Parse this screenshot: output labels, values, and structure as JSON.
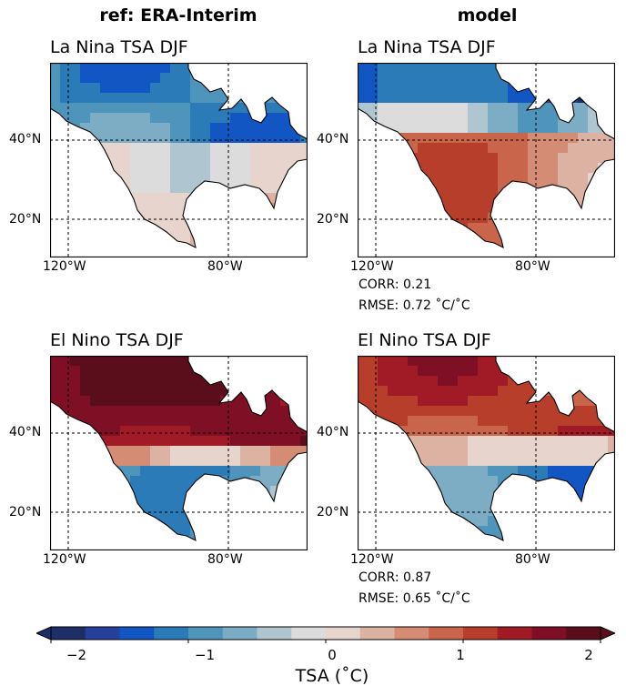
{
  "column_titles": {
    "ref": "ref: ERA-Interim",
    "model": "model"
  },
  "panels": [
    {
      "id": "ref-lanina",
      "title": "La Nina TSA DJF"
    },
    {
      "id": "model-lanina",
      "title": "La Nina TSA DJF"
    },
    {
      "id": "ref-elnino",
      "title": "El Nino TSA DJF"
    },
    {
      "id": "model-elnino",
      "title": "El Nino TSA DJF"
    }
  ],
  "stats": {
    "lanina": {
      "corr": "CORR: 0.21",
      "rmse": "RMSE: 0.72 ˚C/˚C"
    },
    "elnino": {
      "corr": "CORR: 0.87",
      "rmse": "RMSE: 0.65 ˚C/˚C"
    }
  },
  "axes": {
    "lat_labels": [
      "40°N",
      "20°N"
    ],
    "lon_labels": [
      "120°W",
      "80°W"
    ]
  },
  "colorbar": {
    "label": "TSA (˚C)",
    "ticks": [
      "−2",
      "−1",
      "0",
      "1",
      "2"
    ],
    "tick_values": [
      -2,
      -1,
      0,
      1,
      2
    ],
    "range": [
      -2,
      2
    ],
    "colors": [
      "#1d2f66",
      "#27409a",
      "#1156c2",
      "#2a7bb8",
      "#4f94bb",
      "#7dadc4",
      "#afc6d0",
      "#dcdcdc",
      "#e7d4cd",
      "#dcb2a2",
      "#d48c74",
      "#c9654b",
      "#b63e2a",
      "#a01b25",
      "#7e0f24",
      "#5a0e1c"
    ]
  },
  "chart_data": [
    {
      "type": "heatmap",
      "title": "La Nina TSA DJF",
      "source": "ref: ERA-Interim",
      "region": "North America",
      "units": "˚C/˚C",
      "clim": [
        -2,
        2
      ],
      "features": [
        {
          "area": "Canada / northern US",
          "value": -0.9
        },
        {
          "area": "central Canada",
          "value": -1.3
        },
        {
          "area": "southern US / Mexico",
          "value": 0.4
        }
      ]
    },
    {
      "type": "heatmap",
      "title": "La Nina TSA DJF",
      "source": "model",
      "region": "North America",
      "units": "˚C/˚C",
      "clim": [
        -2,
        2
      ],
      "corr": 0.21,
      "rmse": 0.72,
      "features": [
        {
          "area": "northern Canada",
          "value": -1.2
        },
        {
          "area": "central US",
          "value": 0.9
        },
        {
          "area": "southeast US",
          "value": 0.6
        }
      ]
    },
    {
      "type": "heatmap",
      "title": "El Nino TSA DJF",
      "source": "ref: ERA-Interim",
      "region": "North America",
      "units": "˚C/˚C",
      "clim": [
        -2,
        2
      ],
      "features": [
        {
          "area": "Canada",
          "value": 1.9
        },
        {
          "area": "northern US",
          "value": 0.8
        },
        {
          "area": "southern US / Mexico",
          "value": -0.9
        }
      ]
    },
    {
      "type": "heatmap",
      "title": "El Nino TSA DJF",
      "source": "model",
      "region": "North America",
      "units": "˚C/˚C",
      "clim": [
        -2,
        2
      ],
      "corr": 0.87,
      "rmse": 0.65,
      "features": [
        {
          "area": "Canada",
          "value": 1.5
        },
        {
          "area": "northern US",
          "value": 0.5
        },
        {
          "area": "southern US",
          "value": -1.0
        }
      ]
    }
  ]
}
